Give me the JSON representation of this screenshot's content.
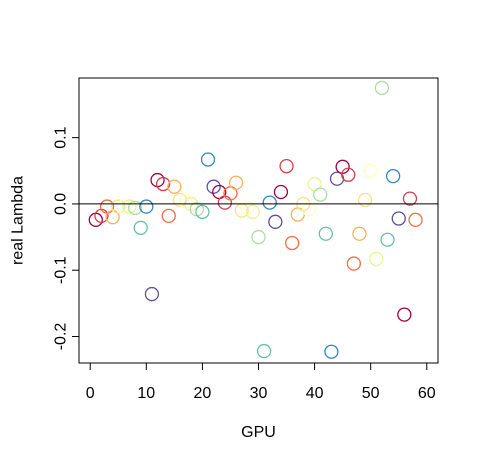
{
  "chart_data": {
    "type": "scatter",
    "title": "",
    "xlabel": "GPU",
    "ylabel": "real Lambda",
    "xlim": [
      -2,
      62
    ],
    "ylim": [
      -0.24,
      0.19
    ],
    "xticks": [
      0,
      10,
      20,
      30,
      40,
      50,
      60
    ],
    "yticks": [
      -0.2,
      -0.1,
      0.0,
      0.1
    ],
    "ytick_labels": [
      "-0.2",
      "-0.1",
      "0.0",
      "0.1"
    ],
    "reference_line": 0.0,
    "grid": false,
    "legend": "none",
    "marker": "open-circle",
    "points": [
      {
        "x": 1,
        "y": -0.024,
        "color": "#9e0142"
      },
      {
        "x": 2,
        "y": -0.018,
        "color": "#d53e4f"
      },
      {
        "x": 3,
        "y": -0.004,
        "color": "#f46d43"
      },
      {
        "x": 4,
        "y": -0.02,
        "color": "#fdae61"
      },
      {
        "x": 5,
        "y": -0.004,
        "color": "#fee08b"
      },
      {
        "x": 6,
        "y": -0.004,
        "color": "#ffffbf"
      },
      {
        "x": 7,
        "y": -0.004,
        "color": "#e6f598"
      },
      {
        "x": 8,
        "y": -0.006,
        "color": "#abdda4"
      },
      {
        "x": 9,
        "y": -0.036,
        "color": "#66c2a5"
      },
      {
        "x": 10,
        "y": -0.004,
        "color": "#3288bd"
      },
      {
        "x": 11,
        "y": -0.136,
        "color": "#5e4fa2"
      },
      {
        "x": 12,
        "y": 0.036,
        "color": "#9e0142"
      },
      {
        "x": 13,
        "y": 0.03,
        "color": "#d53e4f"
      },
      {
        "x": 14,
        "y": -0.018,
        "color": "#f46d43"
      },
      {
        "x": 15,
        "y": 0.026,
        "color": "#fdae61"
      },
      {
        "x": 16,
        "y": 0.006,
        "color": "#fee08b"
      },
      {
        "x": 17,
        "y": 0.004,
        "color": "#ffffbf"
      },
      {
        "x": 18,
        "y": 0.0,
        "color": "#e6f598"
      },
      {
        "x": 19,
        "y": -0.008,
        "color": "#abdda4"
      },
      {
        "x": 20,
        "y": -0.012,
        "color": "#66c2a5"
      },
      {
        "x": 21,
        "y": 0.067,
        "color": "#3288bd"
      },
      {
        "x": 22,
        "y": 0.026,
        "color": "#5e4fa2"
      },
      {
        "x": 23,
        "y": 0.018,
        "color": "#9e0142"
      },
      {
        "x": 24,
        "y": 0.002,
        "color": "#d53e4f"
      },
      {
        "x": 25,
        "y": 0.016,
        "color": "#f46d43"
      },
      {
        "x": 26,
        "y": 0.032,
        "color": "#fdae61"
      },
      {
        "x": 27,
        "y": -0.01,
        "color": "#fee08b"
      },
      {
        "x": 28,
        "y": -0.006,
        "color": "#ffffbf"
      },
      {
        "x": 29,
        "y": -0.012,
        "color": "#e6f598"
      },
      {
        "x": 30,
        "y": -0.05,
        "color": "#abdda4"
      },
      {
        "x": 31,
        "y": -0.222,
        "color": "#66c2a5"
      },
      {
        "x": 32,
        "y": 0.002,
        "color": "#3288bd"
      },
      {
        "x": 33,
        "y": -0.027,
        "color": "#5e4fa2"
      },
      {
        "x": 34,
        "y": 0.018,
        "color": "#9e0142"
      },
      {
        "x": 35,
        "y": 0.057,
        "color": "#d53e4f"
      },
      {
        "x": 36,
        "y": -0.059,
        "color": "#f46d43"
      },
      {
        "x": 37,
        "y": -0.016,
        "color": "#fdae61"
      },
      {
        "x": 38,
        "y": 0.0,
        "color": "#fee08b"
      },
      {
        "x": 39,
        "y": -0.008,
        "color": "#ffffbf"
      },
      {
        "x": 40,
        "y": 0.03,
        "color": "#e6f598"
      },
      {
        "x": 41,
        "y": 0.014,
        "color": "#abdda4"
      },
      {
        "x": 42,
        "y": -0.045,
        "color": "#66c2a5"
      },
      {
        "x": 43,
        "y": -0.223,
        "color": "#3288bd"
      },
      {
        "x": 44,
        "y": 0.038,
        "color": "#5e4fa2"
      },
      {
        "x": 45,
        "y": 0.056,
        "color": "#9e0142"
      },
      {
        "x": 46,
        "y": 0.044,
        "color": "#d53e4f"
      },
      {
        "x": 47,
        "y": -0.09,
        "color": "#f46d43"
      },
      {
        "x": 48,
        "y": -0.045,
        "color": "#fdae61"
      },
      {
        "x": 49,
        "y": 0.006,
        "color": "#fee08b"
      },
      {
        "x": 50,
        "y": 0.05,
        "color": "#ffffbf"
      },
      {
        "x": 51,
        "y": -0.083,
        "color": "#e6f598"
      },
      {
        "x": 52,
        "y": 0.175,
        "color": "#abdda4"
      },
      {
        "x": 53,
        "y": -0.054,
        "color": "#66c2a5"
      },
      {
        "x": 54,
        "y": 0.042,
        "color": "#3288bd"
      },
      {
        "x": 55,
        "y": -0.022,
        "color": "#5e4fa2"
      },
      {
        "x": 56,
        "y": -0.167,
        "color": "#9e0142"
      },
      {
        "x": 57,
        "y": 0.008,
        "color": "#d53e4f"
      },
      {
        "x": 58,
        "y": -0.024,
        "color": "#f46d43"
      }
    ]
  }
}
